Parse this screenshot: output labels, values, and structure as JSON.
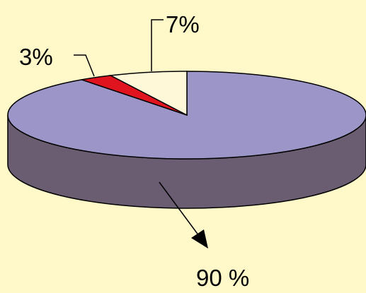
{
  "chart_data": {
    "type": "pie",
    "style": "3d",
    "slices": [
      {
        "label": "90 %",
        "value": 90,
        "color": "#9c96c8"
      },
      {
        "label": "3%",
        "value": 3,
        "color": "#e0141e"
      },
      {
        "label": "7%",
        "value": 7,
        "color": "#fff8d8"
      }
    ],
    "side_color": "#6a5d72",
    "background": "#fff8c8",
    "legend": "none"
  }
}
